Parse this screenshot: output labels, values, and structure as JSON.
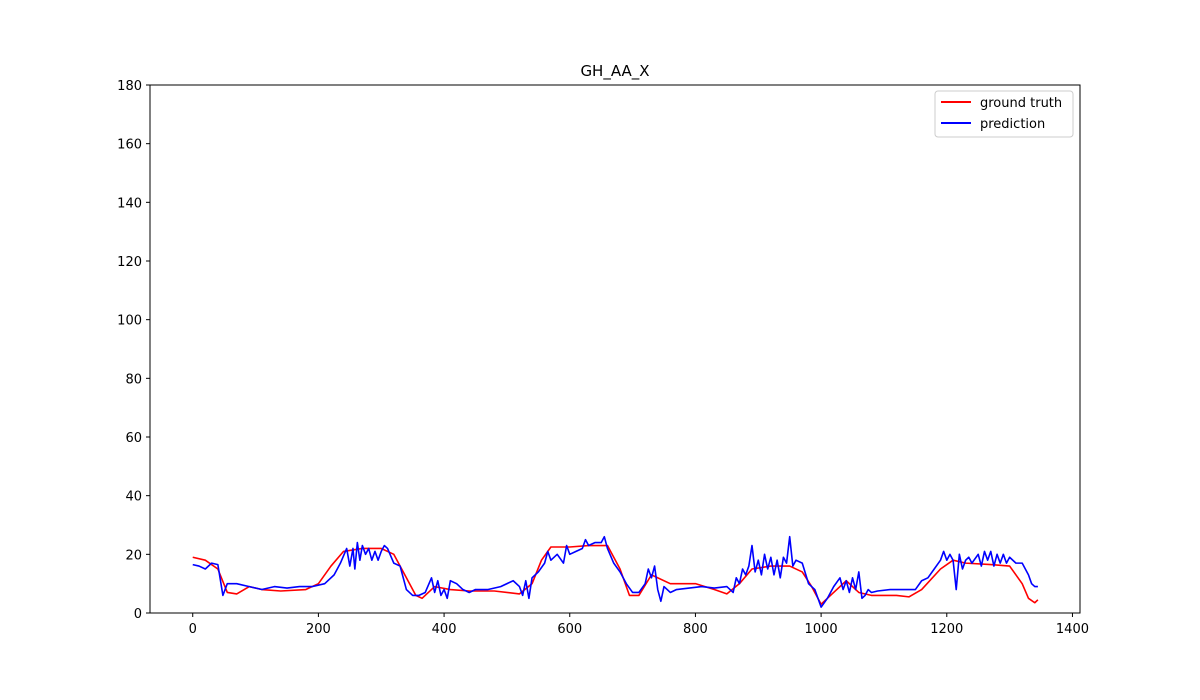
{
  "chart_data": {
    "type": "line",
    "title": "GH_AA_X",
    "xlabel": "",
    "ylabel": "",
    "xlim": [
      -68,
      1412
    ],
    "ylim": [
      0,
      180
    ],
    "xticks": [
      0,
      200,
      400,
      600,
      800,
      1000,
      1200,
      1400
    ],
    "yticks": [
      0,
      20,
      40,
      60,
      80,
      100,
      120,
      140,
      160,
      180
    ],
    "grid": false,
    "legend_position": "top-right",
    "series": [
      {
        "name": "ground truth",
        "color": "#ff0000",
        "points": [
          [
            0,
            19
          ],
          [
            20,
            18
          ],
          [
            40,
            15
          ],
          [
            55,
            7
          ],
          [
            70,
            6.5
          ],
          [
            90,
            9
          ],
          [
            110,
            8
          ],
          [
            140,
            7.5
          ],
          [
            180,
            8
          ],
          [
            200,
            10
          ],
          [
            220,
            16
          ],
          [
            240,
            21
          ],
          [
            270,
            22
          ],
          [
            300,
            22
          ],
          [
            320,
            20
          ],
          [
            340,
            12
          ],
          [
            355,
            6
          ],
          [
            365,
            5
          ],
          [
            385,
            9
          ],
          [
            410,
            8
          ],
          [
            440,
            7.5
          ],
          [
            480,
            7.5
          ],
          [
            520,
            6.5
          ],
          [
            540,
            10
          ],
          [
            555,
            18
          ],
          [
            570,
            22.5
          ],
          [
            600,
            22.5
          ],
          [
            630,
            23
          ],
          [
            660,
            23
          ],
          [
            680,
            15
          ],
          [
            695,
            6
          ],
          [
            710,
            6
          ],
          [
            730,
            13
          ],
          [
            760,
            10
          ],
          [
            800,
            10
          ],
          [
            830,
            8
          ],
          [
            850,
            6.5
          ],
          [
            870,
            10
          ],
          [
            890,
            15
          ],
          [
            920,
            16
          ],
          [
            950,
            16
          ],
          [
            970,
            14
          ],
          [
            985,
            9
          ],
          [
            1000,
            3
          ],
          [
            1020,
            7
          ],
          [
            1040,
            11
          ],
          [
            1060,
            7
          ],
          [
            1080,
            6
          ],
          [
            1120,
            6
          ],
          [
            1140,
            5.5
          ],
          [
            1160,
            8
          ],
          [
            1190,
            15
          ],
          [
            1210,
            18
          ],
          [
            1230,
            17
          ],
          [
            1270,
            16.5
          ],
          [
            1300,
            16
          ],
          [
            1320,
            10
          ],
          [
            1330,
            5
          ],
          [
            1340,
            3.5
          ],
          [
            1345,
            4.5
          ]
        ]
      },
      {
        "name": "prediction",
        "color": "#0000ff",
        "points": [
          [
            0,
            16.5
          ],
          [
            10,
            16
          ],
          [
            20,
            15
          ],
          [
            30,
            17
          ],
          [
            40,
            16.5
          ],
          [
            48,
            6
          ],
          [
            55,
            10
          ],
          [
            70,
            10
          ],
          [
            90,
            9
          ],
          [
            110,
            8
          ],
          [
            130,
            9
          ],
          [
            150,
            8.5
          ],
          [
            170,
            9
          ],
          [
            190,
            9
          ],
          [
            210,
            10
          ],
          [
            225,
            13
          ],
          [
            235,
            17
          ],
          [
            245,
            22
          ],
          [
            250,
            16
          ],
          [
            255,
            22
          ],
          [
            258,
            15
          ],
          [
            262,
            24
          ],
          [
            266,
            18
          ],
          [
            270,
            23
          ],
          [
            275,
            20
          ],
          [
            280,
            22
          ],
          [
            285,
            18
          ],
          [
            290,
            21
          ],
          [
            295,
            18
          ],
          [
            300,
            21
          ],
          [
            305,
            23
          ],
          [
            310,
            22
          ],
          [
            320,
            17
          ],
          [
            330,
            16
          ],
          [
            340,
            8
          ],
          [
            350,
            6
          ],
          [
            360,
            6
          ],
          [
            370,
            7
          ],
          [
            380,
            12
          ],
          [
            385,
            7
          ],
          [
            390,
            11
          ],
          [
            395,
            6
          ],
          [
            400,
            8
          ],
          [
            405,
            5
          ],
          [
            410,
            11
          ],
          [
            420,
            10
          ],
          [
            430,
            8
          ],
          [
            440,
            7
          ],
          [
            450,
            8
          ],
          [
            470,
            8
          ],
          [
            490,
            9
          ],
          [
            510,
            11
          ],
          [
            520,
            9
          ],
          [
            525,
            6
          ],
          [
            530,
            11
          ],
          [
            535,
            5
          ],
          [
            540,
            12
          ],
          [
            550,
            14
          ],
          [
            560,
            17
          ],
          [
            565,
            21
          ],
          [
            570,
            18
          ],
          [
            580,
            20
          ],
          [
            590,
            17
          ],
          [
            595,
            23
          ],
          [
            600,
            20
          ],
          [
            610,
            21
          ],
          [
            620,
            22
          ],
          [
            625,
            25
          ],
          [
            630,
            23
          ],
          [
            640,
            24
          ],
          [
            650,
            24
          ],
          [
            655,
            26
          ],
          [
            660,
            22
          ],
          [
            670,
            17
          ],
          [
            680,
            14
          ],
          [
            690,
            10
          ],
          [
            700,
            7
          ],
          [
            710,
            7
          ],
          [
            720,
            10
          ],
          [
            725,
            15
          ],
          [
            730,
            12
          ],
          [
            735,
            16
          ],
          [
            740,
            8
          ],
          [
            745,
            4
          ],
          [
            750,
            9
          ],
          [
            760,
            7
          ],
          [
            770,
            8
          ],
          [
            790,
            8.5
          ],
          [
            810,
            9
          ],
          [
            830,
            8.5
          ],
          [
            850,
            9
          ],
          [
            860,
            7
          ],
          [
            865,
            12
          ],
          [
            870,
            10
          ],
          [
            875,
            15
          ],
          [
            880,
            13
          ],
          [
            885,
            16
          ],
          [
            890,
            23
          ],
          [
            895,
            14
          ],
          [
            900,
            18
          ],
          [
            905,
            13
          ],
          [
            910,
            20
          ],
          [
            915,
            15
          ],
          [
            920,
            19
          ],
          [
            925,
            13
          ],
          [
            930,
            18
          ],
          [
            935,
            12
          ],
          [
            940,
            19
          ],
          [
            945,
            17
          ],
          [
            950,
            26
          ],
          [
            955,
            16
          ],
          [
            960,
            18
          ],
          [
            970,
            17
          ],
          [
            980,
            10
          ],
          [
            990,
            8
          ],
          [
            1000,
            2
          ],
          [
            1010,
            5
          ],
          [
            1020,
            9
          ],
          [
            1030,
            12
          ],
          [
            1035,
            8
          ],
          [
            1040,
            11
          ],
          [
            1045,
            7
          ],
          [
            1050,
            12
          ],
          [
            1055,
            8
          ],
          [
            1060,
            14
          ],
          [
            1065,
            5
          ],
          [
            1070,
            6
          ],
          [
            1075,
            8
          ],
          [
            1080,
            7
          ],
          [
            1090,
            7.5
          ],
          [
            1110,
            8
          ],
          [
            1130,
            8
          ],
          [
            1150,
            8
          ],
          [
            1160,
            11
          ],
          [
            1170,
            12
          ],
          [
            1180,
            15
          ],
          [
            1190,
            18
          ],
          [
            1195,
            21
          ],
          [
            1200,
            18
          ],
          [
            1205,
            20
          ],
          [
            1210,
            18
          ],
          [
            1215,
            8
          ],
          [
            1220,
            20
          ],
          [
            1225,
            15
          ],
          [
            1230,
            18
          ],
          [
            1235,
            19
          ],
          [
            1240,
            17
          ],
          [
            1250,
            20
          ],
          [
            1255,
            16
          ],
          [
            1260,
            21
          ],
          [
            1265,
            18
          ],
          [
            1270,
            21
          ],
          [
            1275,
            16
          ],
          [
            1280,
            20
          ],
          [
            1285,
            17
          ],
          [
            1290,
            20
          ],
          [
            1295,
            17
          ],
          [
            1300,
            19
          ],
          [
            1310,
            17
          ],
          [
            1320,
            17
          ],
          [
            1330,
            13
          ],
          [
            1335,
            10
          ],
          [
            1340,
            9
          ],
          [
            1345,
            9
          ]
        ]
      }
    ]
  }
}
